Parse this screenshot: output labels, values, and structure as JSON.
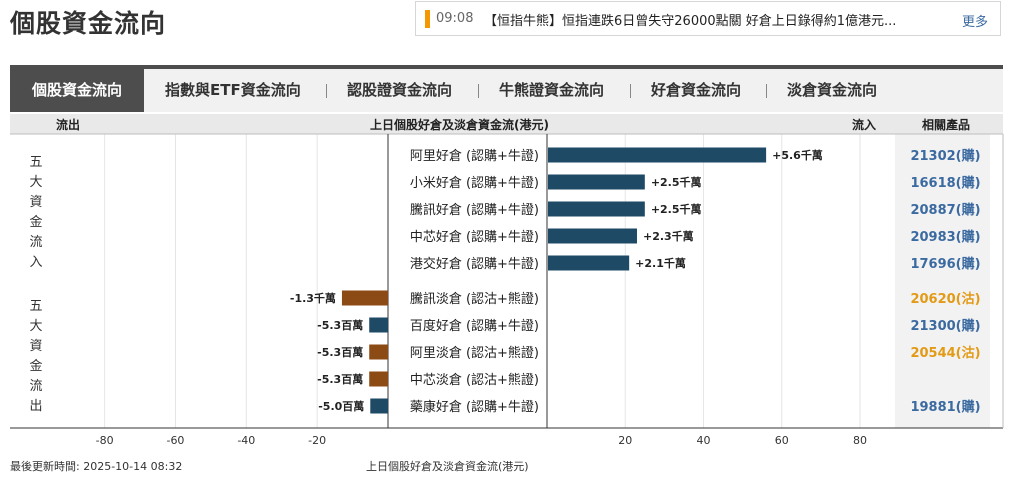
{
  "page": {
    "title": "個股資金流向"
  },
  "news": {
    "time": "09:08",
    "text": "【恒指牛熊】恒指連跌6日曾失守26000點關 好倉上日錄得約1億港元...",
    "more_label": "更多"
  },
  "tabs": [
    {
      "label": "個股資金流向",
      "active": true
    },
    {
      "label": "指數與ETF資金流向",
      "active": false
    },
    {
      "label": "認股證資金流向",
      "active": false
    },
    {
      "label": "牛熊證資金流向",
      "active": false
    },
    {
      "label": "好倉資金流向",
      "active": false
    },
    {
      "label": "淡倉資金流向",
      "active": false
    }
  ],
  "header": {
    "outflow_label": "流出",
    "center_title": "上日個股好倉及淡倉資金流(港元)",
    "inflow_label": "流入",
    "products_label": "相關產品"
  },
  "groups": {
    "inflow_label": "五大資金流入",
    "outflow_label": "五大資金流出"
  },
  "colors": {
    "positive_bar": "#1f4a66",
    "bear_bar": "#8c4a14",
    "call_link": "#3b6aa0",
    "put_link": "#e39a15",
    "tab_active": "#4d4d4d"
  },
  "chart_data": {
    "type": "bar",
    "orientation": "horizontal",
    "unit": "百萬港元",
    "xlim": [
      -100,
      100
    ],
    "x_ticks": [
      -80,
      -60,
      -40,
      -20,
      20,
      40,
      60,
      80
    ],
    "x_axis_title": "上日個股好倉及淡倉資金流(港元)",
    "categories": [
      "阿里好倉 (認購+牛證)",
      "小米好倉 (認購+牛證)",
      "騰訊好倉 (認購+牛證)",
      "中芯好倉 (認購+牛證)",
      "港交好倉 (認購+牛證)",
      "騰訊淡倉 (認沽+熊證)",
      "百度好倉 (認購+牛證)",
      "阿里淡倉 (認沽+熊證)",
      "中芯淡倉 (認沽+熊證)",
      "藥康好倉 (認購+牛證)"
    ],
    "values": [
      56,
      25,
      25,
      23,
      21,
      -13,
      -5.3,
      -5.3,
      -5.3,
      -5.0
    ],
    "value_labels": [
      "+5.6千萬",
      "+2.5千萬",
      "+2.5千萬",
      "+2.3千萬",
      "+2.1千萬",
      "-1.3千萬",
      "-5.3百萬",
      "-5.3百萬",
      "-5.3百萬",
      "-5.0百萬"
    ],
    "bar_types": [
      "bull",
      "bull",
      "bull",
      "bull",
      "bull",
      "bear",
      "bull",
      "bear",
      "bear",
      "bull"
    ],
    "products": [
      {
        "label": "21302(購)",
        "type": "call"
      },
      {
        "label": "16618(購)",
        "type": "call"
      },
      {
        "label": "20887(購)",
        "type": "call"
      },
      {
        "label": "20983(購)",
        "type": "call"
      },
      {
        "label": "17696(購)",
        "type": "call"
      },
      {
        "label": "20620(沽)",
        "type": "put"
      },
      {
        "label": "21300(購)",
        "type": "call"
      },
      {
        "label": "20544(沽)",
        "type": "put"
      },
      {
        "label": "",
        "type": "none"
      },
      {
        "label": "19881(購)",
        "type": "call"
      }
    ]
  },
  "footer": {
    "updated": "最後更新時間: 2025-10-14 08:32",
    "axis_caption": "上日個股好倉及淡倉資金流(港元)"
  }
}
